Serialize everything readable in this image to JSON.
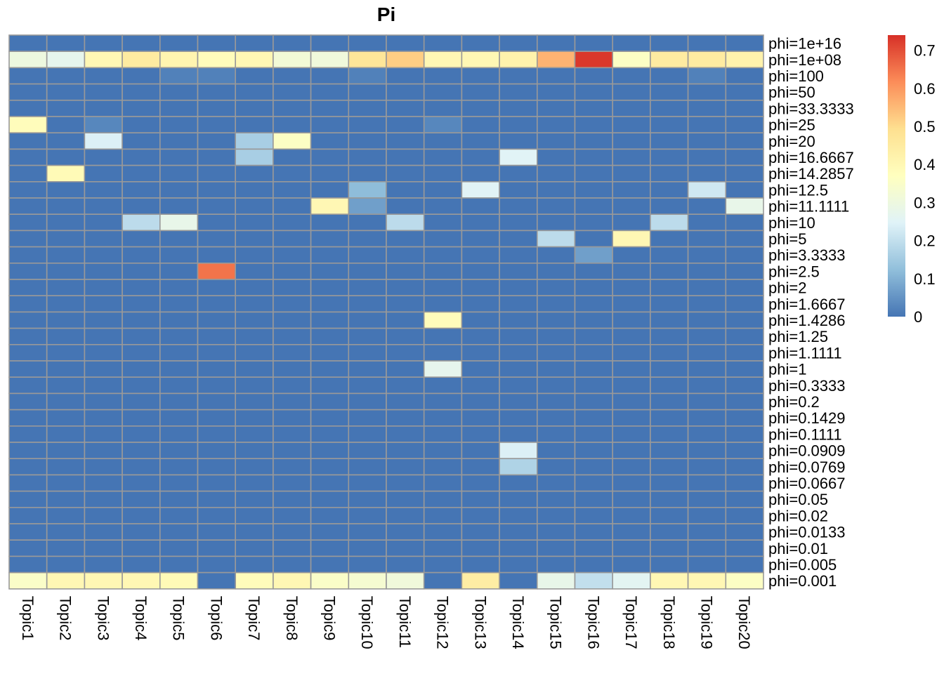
{
  "chart_data": {
    "type": "heatmap",
    "title": "Pi",
    "columns": [
      "Topic1",
      "Topic2",
      "Topic3",
      "Topic4",
      "Topic5",
      "Topic6",
      "Topic7",
      "Topic8",
      "Topic9",
      "Topic10",
      "Topic11",
      "Topic12",
      "Topic13",
      "Topic14",
      "Topic15",
      "Topic16",
      "Topic17",
      "Topic18",
      "Topic19",
      "Topic20"
    ],
    "rows": [
      "phi=1e+16",
      "phi=1e+08",
      "phi=100",
      "phi=50",
      "phi=33.3333",
      "phi=25",
      "phi=20",
      "phi=16.6667",
      "phi=14.2857",
      "phi=12.5",
      "phi=11.1111",
      "phi=10",
      "phi=5",
      "phi=3.3333",
      "phi=2.5",
      "phi=2",
      "phi=1.6667",
      "phi=1.4286",
      "phi=1.25",
      "phi=1.1111",
      "phi=1",
      "phi=0.3333",
      "phi=0.2",
      "phi=0.1429",
      "phi=0.1111",
      "phi=0.0909",
      "phi=0.0769",
      "phi=0.0667",
      "phi=0.05",
      "phi=0.02",
      "phi=0.0133",
      "phi=0.01",
      "phi=0.005",
      "phi=0.001"
    ],
    "values": [
      [
        0,
        0,
        0,
        0,
        0,
        0,
        0,
        0,
        0,
        0,
        0,
        0,
        0,
        0,
        0,
        0,
        0,
        0,
        0,
        0
      ],
      [
        0.3,
        0.27,
        0.4,
        0.45,
        0.41,
        0.38,
        0.4,
        0.32,
        0.31,
        0.47,
        0.52,
        0.4,
        0.4,
        0.42,
        0.56,
        0.73,
        0.36,
        0.45,
        0.45,
        0.42
      ],
      [
        0,
        0,
        0,
        0,
        0.02,
        0.02,
        0,
        0,
        0,
        0.02,
        0,
        0,
        0,
        0,
        0,
        0,
        0,
        0,
        0.02,
        0
      ],
      [
        0,
        0,
        0,
        0,
        0,
        0,
        0,
        0,
        0,
        0,
        0,
        0,
        0,
        0,
        0,
        0,
        0,
        0,
        0,
        0
      ],
      [
        0,
        0,
        0,
        0,
        0,
        0,
        0,
        0,
        0,
        0,
        0,
        0,
        0,
        0,
        0,
        0,
        0,
        0,
        0,
        0
      ],
      [
        0.38,
        0,
        0.03,
        0,
        0,
        0,
        0,
        0,
        0,
        0,
        0,
        0.03,
        0,
        0,
        0,
        0,
        0,
        0,
        0,
        0
      ],
      [
        0,
        0,
        0.24,
        0,
        0,
        0,
        0.16,
        0.36,
        0,
        0,
        0,
        0,
        0,
        0,
        0,
        0,
        0,
        0,
        0,
        0
      ],
      [
        0,
        0,
        0,
        0,
        0,
        0,
        0.16,
        0,
        0,
        0,
        0,
        0,
        0,
        0.25,
        0,
        0,
        0,
        0,
        0,
        0
      ],
      [
        0,
        0.39,
        0,
        0,
        0,
        0,
        0,
        0,
        0,
        0,
        0,
        0,
        0,
        0,
        0,
        0,
        0,
        0,
        0,
        0
      ],
      [
        0,
        0,
        0,
        0,
        0,
        0,
        0,
        0,
        0,
        0.12,
        0,
        0,
        0.25,
        0,
        0,
        0,
        0,
        0,
        0.22,
        0
      ],
      [
        0,
        0,
        0,
        0,
        0,
        0,
        0,
        0,
        0.4,
        0.07,
        0,
        0,
        0,
        0,
        0,
        0,
        0,
        0,
        0,
        0.28
      ],
      [
        0,
        0,
        0,
        0.19,
        0.28,
        0,
        0,
        0,
        0,
        0,
        0.19,
        0,
        0,
        0,
        0,
        0,
        0,
        0.19,
        0,
        0
      ],
      [
        0,
        0,
        0,
        0,
        0,
        0,
        0,
        0,
        0,
        0,
        0,
        0,
        0,
        0,
        0.19,
        0,
        0.4,
        0,
        0,
        0
      ],
      [
        0,
        0,
        0,
        0,
        0,
        0,
        0,
        0,
        0,
        0,
        0,
        0,
        0,
        0,
        0,
        0.07,
        0,
        0,
        0,
        0
      ],
      [
        0,
        0,
        0,
        0,
        0,
        0.65,
        0,
        0,
        0,
        0,
        0,
        0,
        0,
        0,
        0,
        0,
        0,
        0,
        0,
        0
      ],
      [
        0,
        0,
        0,
        0,
        0,
        0,
        0,
        0,
        0,
        0,
        0,
        0,
        0,
        0,
        0,
        0,
        0,
        0,
        0,
        0
      ],
      [
        0,
        0,
        0,
        0,
        0,
        0,
        0,
        0,
        0,
        0,
        0,
        0,
        0,
        0,
        0,
        0,
        0,
        0,
        0,
        0
      ],
      [
        0,
        0,
        0,
        0,
        0,
        0,
        0,
        0,
        0,
        0,
        0,
        0.38,
        0,
        0,
        0,
        0,
        0,
        0,
        0,
        0
      ],
      [
        0,
        0,
        0,
        0,
        0,
        0,
        0,
        0,
        0,
        0,
        0,
        0,
        0,
        0,
        0,
        0,
        0,
        0,
        0,
        0
      ],
      [
        0,
        0,
        0,
        0,
        0,
        0,
        0,
        0,
        0,
        0,
        0,
        0,
        0,
        0,
        0,
        0,
        0,
        0,
        0,
        0
      ],
      [
        0,
        0,
        0,
        0,
        0,
        0,
        0,
        0,
        0,
        0,
        0,
        0.27,
        0,
        0,
        0,
        0,
        0,
        0,
        0,
        0
      ],
      [
        0,
        0,
        0,
        0,
        0,
        0,
        0,
        0,
        0,
        0,
        0,
        0,
        0,
        0,
        0,
        0,
        0,
        0,
        0,
        0
      ],
      [
        0,
        0,
        0,
        0,
        0,
        0,
        0,
        0,
        0,
        0,
        0,
        0,
        0,
        0,
        0,
        0,
        0,
        0,
        0,
        0
      ],
      [
        0,
        0,
        0,
        0,
        0,
        0,
        0,
        0,
        0,
        0,
        0,
        0,
        0,
        0,
        0,
        0,
        0,
        0,
        0,
        0
      ],
      [
        0,
        0,
        0,
        0,
        0,
        0,
        0,
        0,
        0,
        0,
        0,
        0,
        0,
        0,
        0,
        0,
        0,
        0,
        0,
        0
      ],
      [
        0,
        0,
        0,
        0,
        0,
        0,
        0,
        0,
        0,
        0,
        0,
        0,
        0,
        0.24,
        0,
        0,
        0,
        0,
        0,
        0
      ],
      [
        0,
        0,
        0,
        0,
        0,
        0,
        0,
        0,
        0,
        0,
        0,
        0,
        0,
        0.17,
        0,
        0,
        0,
        0,
        0,
        0
      ],
      [
        0,
        0,
        0,
        0,
        0,
        0,
        0,
        0,
        0,
        0,
        0,
        0,
        0,
        0,
        0,
        0,
        0,
        0,
        0,
        0
      ],
      [
        0,
        0,
        0,
        0,
        0,
        0,
        0,
        0,
        0,
        0,
        0,
        0,
        0,
        0,
        0,
        0,
        0,
        0,
        0,
        0
      ],
      [
        0,
        0,
        0,
        0,
        0,
        0,
        0,
        0,
        0,
        0,
        0,
        0,
        0,
        0,
        0,
        0,
        0,
        0,
        0,
        0
      ],
      [
        0,
        0,
        0,
        0,
        0,
        0,
        0,
        0,
        0,
        0,
        0,
        0,
        0,
        0,
        0,
        0,
        0,
        0,
        0,
        0
      ],
      [
        0,
        0,
        0,
        0,
        0,
        0,
        0,
        0,
        0,
        0,
        0,
        0,
        0,
        0,
        0,
        0,
        0,
        0,
        0,
        0
      ],
      [
        0,
        0,
        0,
        0,
        0,
        0,
        0,
        0,
        0,
        0,
        0,
        0,
        0,
        0,
        0,
        0,
        0,
        0,
        0,
        0
      ],
      [
        0.35,
        0.4,
        0.4,
        0.4,
        0.39,
        0,
        0.38,
        0.4,
        0.35,
        0.33,
        0.31,
        0,
        0.44,
        0,
        0.28,
        0.2,
        0.26,
        0.4,
        0.4,
        0.36
      ]
    ],
    "scale": {
      "min": 0,
      "max": 0.74,
      "ticks": [
        0,
        0.1,
        0.2,
        0.3,
        0.4,
        0.5,
        0.6,
        0.7
      ],
      "tick_labels": [
        "0",
        "0.1",
        "0.2",
        "0.3",
        "0.4",
        "0.5",
        "0.6",
        "0.7"
      ]
    },
    "palette": [
      "#4575B4",
      "#91BFDB",
      "#E0F3F8",
      "#FFFFBF",
      "#FEE090",
      "#FC8D59",
      "#D73027"
    ],
    "cell_border_color": "#999999",
    "legend_position": "right"
  }
}
